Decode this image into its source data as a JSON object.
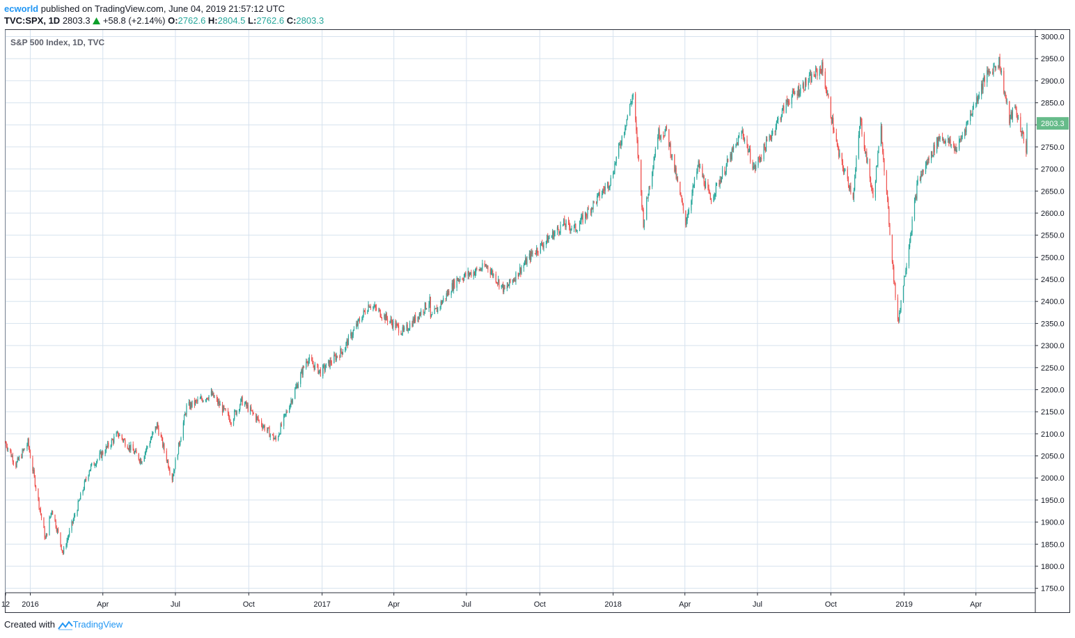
{
  "header": {
    "author": "ecworld",
    "published_text": "published on TradingView.com, June 04, 2019 21:57:12 UTC",
    "symbol": "TVC:SPX, 1D",
    "last": "2803.3",
    "change": "+58.8 (+2.14%)",
    "open_label": "O:",
    "open": "2762.6",
    "high_label": "H:",
    "high": "2804.5",
    "low_label": "L:",
    "low": "2762.6",
    "close_label": "C:",
    "close": "2803.3"
  },
  "footer": {
    "created_with": "Created with",
    "brand": "TradingView"
  },
  "colors": {
    "up": "#26a69a",
    "down": "#ef5350",
    "grid": "#d6e2ee",
    "axis": "#2a2e39",
    "price_tag": "#66bb8a",
    "link": "#2196f3"
  },
  "chart_data": {
    "type": "candlestick",
    "title": "S&P 500 Index, 1D, TVC",
    "ylim": [
      1740,
      3015
    ],
    "y_ticks": [
      3000.0,
      2950.0,
      2900.0,
      2850.0,
      2800.0,
      2750.0,
      2700.0,
      2650.0,
      2600.0,
      2550.0,
      2500.0,
      2450.0,
      2400.0,
      2350.0,
      2300.0,
      2250.0,
      2200.0,
      2150.0,
      2100.0,
      2050.0,
      2000.0,
      1950.0,
      1900.0,
      1850.0,
      1800.0,
      1750.0
    ],
    "y_tick_labels": [
      "3000.0",
      "2950.0",
      "2900.0",
      "2850.0",
      "2800.0",
      "2750.0",
      "2700.0",
      "2650.0",
      "2600.0",
      "2550.0",
      "2500.0",
      "2450.0",
      "2400.0",
      "2350.0",
      "2300.0",
      "2250.0",
      "2200.0",
      "2150.0",
      "2100.0",
      "2050.0",
      "2000.0",
      "1950.0",
      "1900.0",
      "1850.0",
      "1800.0",
      "1750.0"
    ],
    "x_range": [
      "2015-12-01",
      "2019-06-04"
    ],
    "x_ticks": [
      {
        "date": "2015-12-01",
        "label": "12"
      },
      {
        "date": "2016-01-01",
        "label": "2016"
      },
      {
        "date": "2016-04-01",
        "label": "Apr"
      },
      {
        "date": "2016-07-01",
        "label": "Jul"
      },
      {
        "date": "2016-10-01",
        "label": "Oct"
      },
      {
        "date": "2017-01-01",
        "label": "2017"
      },
      {
        "date": "2017-04-01",
        "label": "Apr"
      },
      {
        "date": "2017-07-01",
        "label": "Jul"
      },
      {
        "date": "2017-10-01",
        "label": "Oct"
      },
      {
        "date": "2018-01-01",
        "label": "2018"
      },
      {
        "date": "2018-04-01",
        "label": "Apr"
      },
      {
        "date": "2018-07-01",
        "label": "Jul"
      },
      {
        "date": "2018-10-01",
        "label": "Oct"
      },
      {
        "date": "2019-01-01",
        "label": "2019"
      },
      {
        "date": "2019-04-01",
        "label": "Apr"
      }
    ],
    "last_price": 2803.3,
    "last_price_label": "2803.3",
    "price_path": [
      [
        "2015-12-01",
        2080
      ],
      [
        "2015-12-14",
        2030
      ],
      [
        "2015-12-29",
        2080
      ],
      [
        "2016-01-20",
        1860
      ],
      [
        "2016-01-28",
        1930
      ],
      [
        "2016-02-11",
        1830
      ],
      [
        "2016-03-15",
        2020
      ],
      [
        "2016-04-20",
        2100
      ],
      [
        "2016-05-19",
        2040
      ],
      [
        "2016-06-08",
        2120
      ],
      [
        "2016-06-27",
        2000
      ],
      [
        "2016-07-15",
        2160
      ],
      [
        "2016-08-15",
        2190
      ],
      [
        "2016-09-09",
        2130
      ],
      [
        "2016-09-22",
        2175
      ],
      [
        "2016-11-04",
        2085
      ],
      [
        "2016-12-13",
        2270
      ],
      [
        "2016-12-30",
        2240
      ],
      [
        "2017-01-27",
        2290
      ],
      [
        "2017-03-01",
        2395
      ],
      [
        "2017-04-13",
        2330
      ],
      [
        "2017-05-16",
        2400
      ],
      [
        "2017-05-17",
        2360
      ],
      [
        "2017-06-19",
        2450
      ],
      [
        "2017-07-27",
        2480
      ],
      [
        "2017-08-18",
        2425
      ],
      [
        "2017-09-20",
        2505
      ],
      [
        "2017-10-31",
        2575
      ],
      [
        "2017-11-15",
        2565
      ],
      [
        "2017-12-29",
        2675
      ],
      [
        "2018-01-26",
        2870
      ],
      [
        "2018-02-08",
        2580
      ],
      [
        "2018-02-26",
        2780
      ],
      [
        "2018-03-09",
        2785
      ],
      [
        "2018-04-02",
        2580
      ],
      [
        "2018-04-18",
        2710
      ],
      [
        "2018-05-03",
        2630
      ],
      [
        "2018-06-12",
        2785
      ],
      [
        "2018-06-27",
        2700
      ],
      [
        "2018-08-08",
        2855
      ],
      [
        "2018-09-20",
        2930
      ],
      [
        "2018-10-11",
        2730
      ],
      [
        "2018-10-29",
        2640
      ],
      [
        "2018-11-07",
        2810
      ],
      [
        "2018-11-23",
        2635
      ],
      [
        "2018-12-03",
        2790
      ],
      [
        "2018-12-24",
        2350
      ],
      [
        "2019-01-18",
        2670
      ],
      [
        "2019-02-15",
        2775
      ],
      [
        "2019-03-08",
        2745
      ],
      [
        "2019-04-12",
        2905
      ],
      [
        "2019-04-30",
        2945
      ],
      [
        "2019-05-13",
        2810
      ],
      [
        "2019-05-20",
        2840
      ],
      [
        "2019-06-03",
        2745
      ],
      [
        "2019-06-04",
        2803.3
      ]
    ]
  }
}
